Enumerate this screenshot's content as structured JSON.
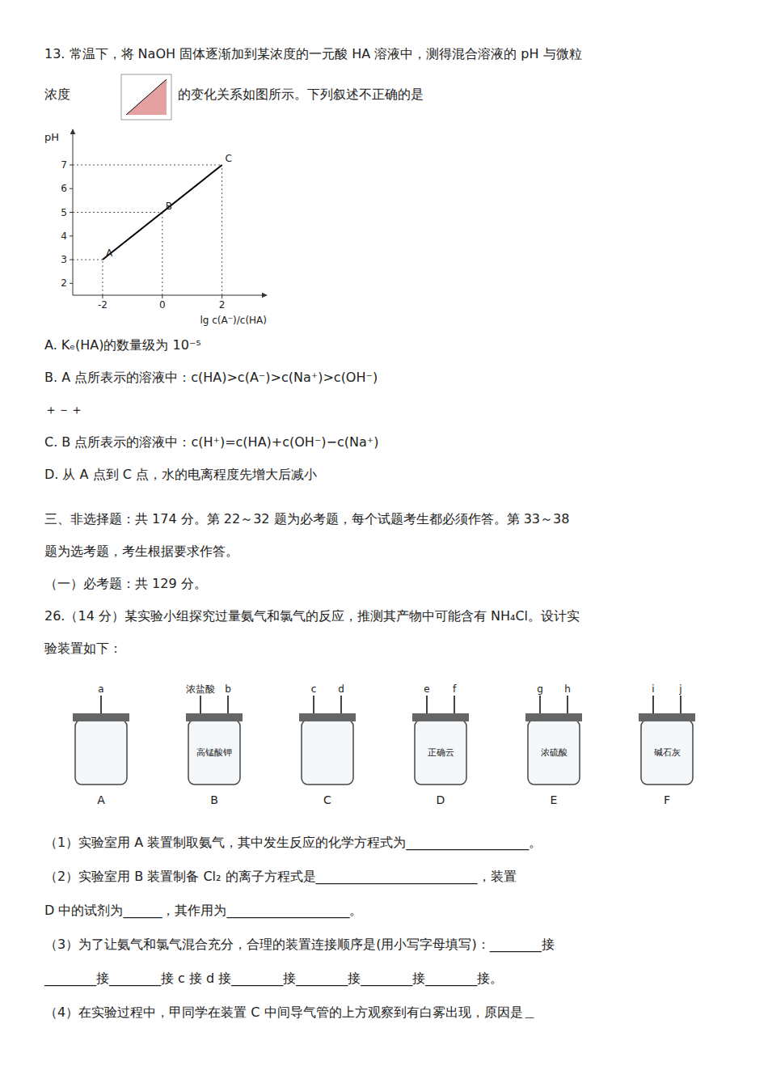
{
  "chart_data": {
    "type": "line",
    "x": [
      -2,
      0,
      2
    ],
    "values": [
      3,
      5,
      7
    ],
    "point_labels": [
      "A",
      "B",
      "C"
    ],
    "xlabel": "lg c(A⁻)/c(HA)",
    "ylabel": "pH",
    "xlim": [
      -3,
      3.5
    ],
    "ylim": [
      1.5,
      8.5
    ],
    "xticks": [
      -2,
      0,
      2
    ],
    "yticks": [
      2,
      3,
      4,
      5,
      6,
      7
    ],
    "color": "#000000",
    "grid": false
  },
  "page": {
    "line1": "13. 常温下，将 NaOH 固体逐渐加到某浓度的一元酸 HA 溶液中，测得混合溶液的 pH 与微粒",
    "line2_pre": "浓度",
    "line2_post": "的变化关系如图所示。下列叙述不正确的是",
    "choices": [
      "A. Kₑ(HA)的数量级为 10⁻⁵",
      "B. A 点所表示的溶液中：c(HA)>c(A⁻)>c(Na⁺)>c(OH⁻)",
      "＋－＋",
      "C. B 点所表示的溶液中：c(H⁺)=c(HA)+c(OH⁻)−c(Na⁺)",
      "D. 从 A 点到 C 点，水的电离程度先增大后减小"
    ],
    "after_chart": [
      "三、非选择题：共 174 分。第 22～32 题为必考题，每个试题考生都必须作答。第 33～38",
      "题为选考题，考生根据要求作答。",
      "（一）必考题：共 129 分。",
      "26.（14 分）某实验小组探究过量氨气和氯气的反应，推测其产物中可能含有 NH₄Cl。设计实",
      "验装置如下："
    ],
    "apparatus": [
      {
        "name": "A",
        "ports": [
          "a"
        ],
        "reagents": []
      },
      {
        "name": "B",
        "ports": [
          "浓盐酸",
          "b"
        ],
        "reagents": [
          "高锰酸钾"
        ]
      },
      {
        "name": "C",
        "ports": [
          "c",
          "d"
        ],
        "reagents": []
      },
      {
        "name": "D",
        "ports": [
          "e",
          "f"
        ],
        "reagents": [
          "正确云"
        ]
      },
      {
        "name": "E",
        "ports": [
          "g",
          "h"
        ],
        "reagents": [
          "浓硫酸"
        ]
      },
      {
        "name": "F",
        "ports": [
          "i",
          "j"
        ],
        "reagents": [
          "碱石灰"
        ]
      }
    ],
    "questions": [
      "（1）实验室用 A 装置制取氨气，其中发生反应的化学方程式为___________________。",
      "（2）实验室用 B 装置制备 Cl₂ 的离子方程式是_________________________，装置",
      "D 中的试剂为______，其作用为___________________。",
      "（3）为了让氨气和氯气混合充分，合理的装置连接顺序是(用小写字母填写)：________接",
      "________接________接 c 接 d 接________接________接________接________接。",
      "（4）在实验过程中，甲同学在装置 C 中间导气管的上方观察到有白雾出现，原因是＿"
    ]
  }
}
